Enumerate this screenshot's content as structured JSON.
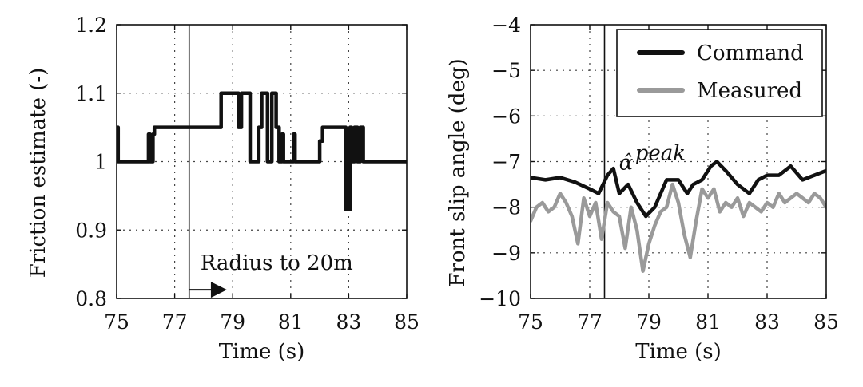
{
  "chart_data": [
    {
      "type": "line",
      "xlabel": "Time (s)",
      "ylabel": "Friction estimate (-)",
      "xlim": [
        75,
        85
      ],
      "ylim": [
        0.8,
        1.2
      ],
      "xticks": [
        75,
        77,
        79,
        81,
        83,
        85
      ],
      "yticks": [
        0.8,
        0.9,
        1,
        1.1,
        1.2
      ],
      "ytick_labels": [
        "0.8",
        "0.9",
        "1",
        "1.1",
        "1.2"
      ],
      "grid": true,
      "vline_x": 77.5,
      "annotation": {
        "text": "Radius to 20m",
        "arrow_from_x": 77.5,
        "arrow_to_x": 78.8,
        "y": 0.808
      },
      "series": [
        {
          "name": "Friction estimate",
          "color": "#111111",
          "x": [
            75,
            75.05,
            75.05,
            76.1,
            76.1,
            76.15,
            76.15,
            76.25,
            76.25,
            76.3,
            76.3,
            77.5,
            77.5,
            78.6,
            78.6,
            79.2,
            79.2,
            79.3,
            79.3,
            79.6,
            79.6,
            79.9,
            79.9,
            80.0,
            80.0,
            80.2,
            80.2,
            80.35,
            80.35,
            80.5,
            80.5,
            80.6,
            80.6,
            80.7,
            80.7,
            80.75,
            80.75,
            81.1,
            81.1,
            81.15,
            81.15,
            82.0,
            82.0,
            82.1,
            82.1,
            82.9,
            82.9,
            83.05,
            83.05,
            83.1,
            83.1,
            83.2,
            83.2,
            83.3,
            83.3,
            83.4,
            83.4,
            83.5,
            83.5,
            83.55,
            83.55,
            85
          ],
          "values": [
            1.05,
            1.05,
            1.0,
            1.0,
            1.04,
            1.04,
            1.0,
            1.0,
            1.04,
            1.04,
            1.05,
            1.05,
            1.05,
            1.05,
            1.1,
            1.1,
            1.05,
            1.05,
            1.1,
            1.1,
            1.0,
            1.0,
            1.05,
            1.05,
            1.1,
            1.1,
            1.0,
            1.0,
            1.1,
            1.1,
            1.05,
            1.05,
            1.0,
            1.0,
            1.04,
            1.04,
            1.0,
            1.0,
            1.04,
            1.04,
            1.0,
            1.0,
            1.03,
            1.03,
            1.05,
            1.05,
            0.93,
            0.93,
            1.05,
            1.05,
            1.0,
            1.0,
            1.05,
            1.05,
            1.0,
            1.0,
            1.05,
            1.05,
            1.0,
            1.0,
            1.0,
            1.0
          ]
        }
      ]
    },
    {
      "type": "line",
      "xlabel": "Time (s)",
      "ylabel": "Front slip angle (deg)",
      "xlim": [
        75,
        85
      ],
      "ylim": [
        -10,
        -4
      ],
      "xticks": [
        75,
        77,
        79,
        81,
        83,
        85
      ],
      "yticks": [
        -10,
        -9,
        -8,
        -7,
        -6,
        -5,
        -4
      ],
      "ytick_labels": [
        "−10",
        "−9",
        "−8",
        "−7",
        "−6",
        "−5",
        "−4"
      ],
      "grid": true,
      "vline_x": 77.5,
      "legend": {
        "position": "top-right",
        "entries": [
          {
            "label": "Command",
            "color": "#111111"
          },
          {
            "label": "Measured",
            "color": "#9a9a9a"
          }
        ]
      },
      "annotation": {
        "text": "α̂",
        "superscript": "peak",
        "x": 78.1,
        "y": -7.0
      },
      "series": [
        {
          "name": "Command",
          "color": "#111111",
          "x": [
            75,
            75.5,
            76,
            76.5,
            77,
            77.3,
            77.6,
            77.8,
            78.0,
            78.3,
            78.6,
            78.9,
            79.2,
            79.6,
            80.0,
            80.3,
            80.5,
            80.8,
            81.0,
            81.1,
            81.3,
            81.6,
            82.0,
            82.4,
            82.7,
            83.0,
            83.4,
            83.8,
            84.2,
            84.6,
            85
          ],
          "values": [
            -7.35,
            -7.4,
            -7.35,
            -7.45,
            -7.6,
            -7.7,
            -7.3,
            -7.15,
            -7.7,
            -7.5,
            -7.9,
            -8.2,
            -8.0,
            -7.4,
            -7.4,
            -7.7,
            -7.5,
            -7.4,
            -7.2,
            -7.1,
            -7.0,
            -7.2,
            -7.5,
            -7.7,
            -7.4,
            -7.3,
            -7.3,
            -7.1,
            -7.4,
            -7.3,
            -7.2
          ]
        },
        {
          "name": "Measured",
          "color": "#9a9a9a",
          "x": [
            75,
            75.2,
            75.4,
            75.6,
            75.8,
            76.0,
            76.2,
            76.4,
            76.6,
            76.8,
            77.0,
            77.2,
            77.4,
            77.6,
            77.8,
            78.0,
            78.2,
            78.4,
            78.6,
            78.8,
            79.0,
            79.2,
            79.4,
            79.6,
            79.8,
            80.0,
            80.2,
            80.4,
            80.6,
            80.8,
            81.0,
            81.2,
            81.4,
            81.6,
            81.8,
            82.0,
            82.2,
            82.4,
            82.6,
            82.8,
            83.0,
            83.2,
            83.4,
            83.6,
            83.8,
            84.0,
            84.2,
            84.4,
            84.6,
            84.8,
            85.0
          ],
          "values": [
            -8.3,
            -8.0,
            -7.9,
            -8.1,
            -8.0,
            -7.7,
            -7.9,
            -8.2,
            -8.8,
            -7.8,
            -8.2,
            -7.9,
            -8.7,
            -7.9,
            -8.1,
            -8.2,
            -8.9,
            -8.0,
            -8.5,
            -9.4,
            -8.8,
            -8.4,
            -8.1,
            -8.0,
            -7.5,
            -7.9,
            -8.6,
            -9.1,
            -8.3,
            -7.6,
            -7.8,
            -7.6,
            -8.1,
            -7.9,
            -8.0,
            -7.8,
            -8.2,
            -7.9,
            -8.0,
            -8.1,
            -7.9,
            -8.0,
            -7.7,
            -7.9,
            -7.8,
            -7.7,
            -7.8,
            -7.9,
            -7.7,
            -7.8,
            -8.0
          ]
        }
      ]
    }
  ]
}
